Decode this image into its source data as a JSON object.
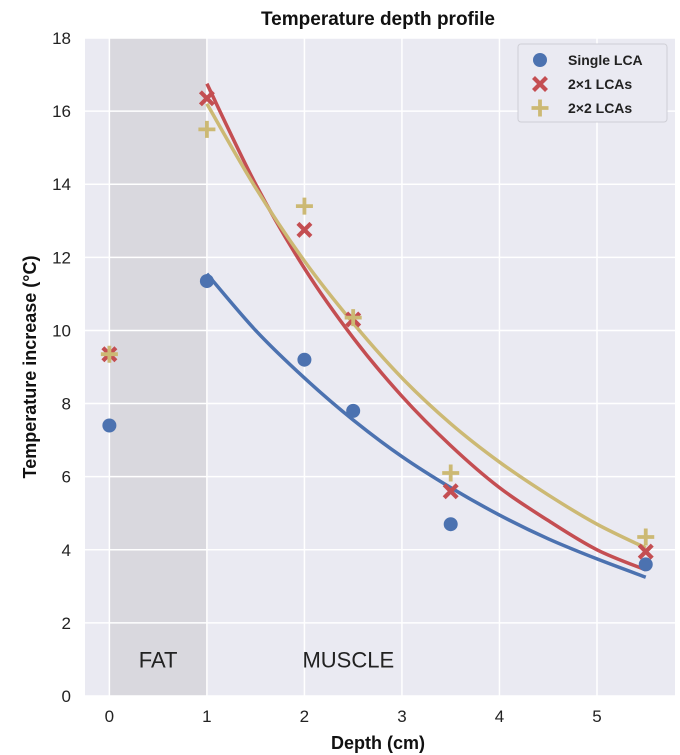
{
  "chart_data": {
    "type": "scatter",
    "title": "Temperature depth profile",
    "xlabel": "Depth (cm)",
    "ylabel": "Temperature increase (°C)",
    "xlim": [
      -0.25,
      5.8
    ],
    "ylim": [
      0,
      18
    ],
    "xticks": [
      0,
      1,
      2,
      3,
      4,
      5
    ],
    "yticks": [
      0,
      2,
      4,
      6,
      8,
      10,
      12,
      14,
      16,
      18
    ],
    "grid": true,
    "legend_position": "top-right",
    "regions": [
      {
        "label": "FAT",
        "x_range": [
          0,
          1
        ],
        "color": "#d9d8de"
      },
      {
        "label": "MUSCLE",
        "x_range": [
          1,
          5.8
        ],
        "color": ""
      }
    ],
    "region_label_y": 1,
    "series": [
      {
        "name": "Single LCA",
        "marker": "circle",
        "color": "#4c72b0",
        "points": [
          [
            0,
            7.4
          ],
          [
            1,
            11.35
          ],
          [
            2,
            9.2
          ],
          [
            2.5,
            7.8
          ],
          [
            3.5,
            4.7
          ],
          [
            5.5,
            3.6
          ]
        ],
        "fit": [
          [
            1,
            11.55
          ],
          [
            1.5,
            10.0
          ],
          [
            2,
            8.7
          ],
          [
            2.5,
            7.55
          ],
          [
            3,
            6.55
          ],
          [
            3.5,
            5.7
          ],
          [
            4,
            4.95
          ],
          [
            4.5,
            4.3
          ],
          [
            5,
            3.75
          ],
          [
            5.5,
            3.25
          ]
        ]
      },
      {
        "name": "2×1 LCAs",
        "marker": "x",
        "color": "#c44e52",
        "points": [
          [
            0,
            9.35
          ],
          [
            1,
            16.35
          ],
          [
            2,
            12.75
          ],
          [
            2.5,
            10.3
          ],
          [
            3.5,
            5.6
          ],
          [
            5.5,
            3.95
          ]
        ],
        "fit": [
          [
            1,
            16.75
          ],
          [
            1.5,
            14.0
          ],
          [
            2,
            11.7
          ],
          [
            2.5,
            9.8
          ],
          [
            3,
            8.2
          ],
          [
            3.5,
            6.85
          ],
          [
            4,
            5.7
          ],
          [
            4.5,
            4.8
          ],
          [
            5,
            4.0
          ],
          [
            5.5,
            3.45
          ]
        ]
      },
      {
        "name": "2×2 LCAs",
        "marker": "plus",
        "color": "#ccb974",
        "points": [
          [
            0,
            9.35
          ],
          [
            1,
            15.5
          ],
          [
            2,
            13.4
          ],
          [
            2.5,
            10.35
          ],
          [
            3.5,
            6.1
          ],
          [
            5.5,
            4.35
          ]
        ],
        "fit": [
          [
            1,
            16.2
          ],
          [
            1.5,
            13.9
          ],
          [
            2,
            11.9
          ],
          [
            2.5,
            10.2
          ],
          [
            3,
            8.7
          ],
          [
            3.5,
            7.45
          ],
          [
            4,
            6.4
          ],
          [
            4.5,
            5.5
          ],
          [
            5,
            4.7
          ],
          [
            5.5,
            4.05
          ]
        ]
      }
    ]
  }
}
